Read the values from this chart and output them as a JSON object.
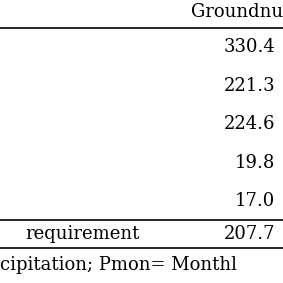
{
  "col_header": "Groundnu",
  "row_labels": [
    "",
    "",
    "",
    "",
    "",
    "requirement"
  ],
  "values": [
    "330.4",
    "221.3",
    "224.6",
    "19.8",
    "17.0",
    "207.7"
  ],
  "footer": "cipitation; Pmon= Monthl",
  "bg_color": "#ffffff",
  "text_color": "#000000",
  "font_size": 13,
  "header_font_size": 13
}
